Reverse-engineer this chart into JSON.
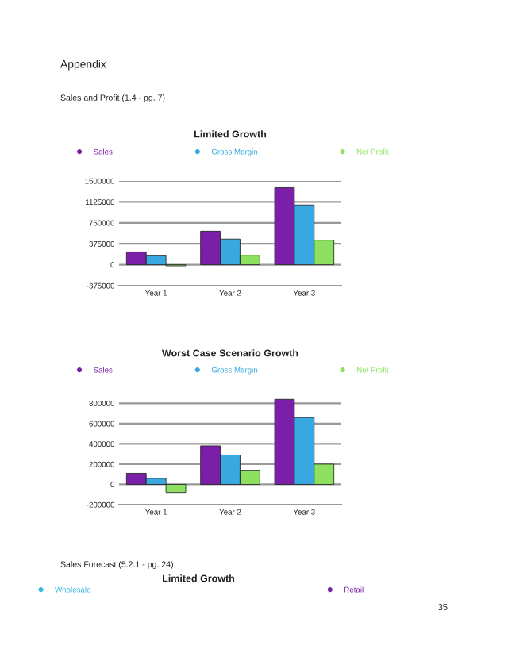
{
  "chart_data": [
    {
      "type": "bar",
      "title": "Limited Growth",
      "annotations": [
        "Appendix",
        "Sales and Profit (1.4 - pg. 7)"
      ],
      "categories": [
        "Year 1",
        "Year 2",
        "Year 3"
      ],
      "series": [
        {
          "name": "Sales",
          "color": "#7b1fa8",
          "values": [
            230000,
            600000,
            1380000
          ]
        },
        {
          "name": "Gross Margin",
          "color": "#3aa8e0",
          "values": [
            160000,
            460000,
            1070000
          ]
        },
        {
          "name": "Net Profit",
          "color": "#8ee060",
          "values": [
            -20000,
            170000,
            440000
          ]
        }
      ],
      "ylim": [
        -375000,
        1500000
      ],
      "yticks": [
        -375000,
        0,
        375000,
        750000,
        1125000,
        1500000
      ],
      "grid": "y",
      "legend": "top"
    },
    {
      "type": "bar",
      "title": "Worst Case Scenario Growth",
      "categories": [
        "Year 1",
        "Year 2",
        "Year 3"
      ],
      "series": [
        {
          "name": "Sales",
          "color": "#7b1fa8",
          "values": [
            110000,
            380000,
            840000
          ]
        },
        {
          "name": "Gross Margin",
          "color": "#3aa8e0",
          "values": [
            60000,
            290000,
            660000
          ]
        },
        {
          "name": "Net Profit",
          "color": "#8ee060",
          "values": [
            -80000,
            140000,
            200000
          ]
        }
      ],
      "ylim": [
        -200000,
        850000
      ],
      "yticks": [
        -200000,
        0,
        200000,
        400000,
        600000,
        800000
      ],
      "grid": "y",
      "legend": "top"
    },
    {
      "type": "other",
      "title": "Limited Growth",
      "annotations": [
        "Sales Forecast (5.2.1 - pg. 24)",
        "35"
      ],
      "series": [
        {
          "name": "Wholesale",
          "color": "#3ab8e0"
        },
        {
          "name": "Retail",
          "color": "#7b1fa8"
        }
      ],
      "legend": "top"
    }
  ]
}
